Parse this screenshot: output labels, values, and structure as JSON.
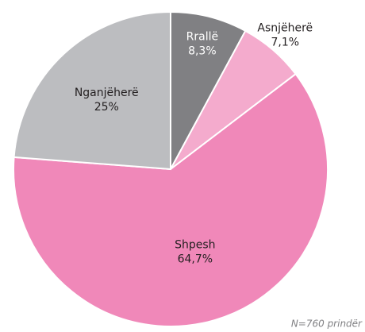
{
  "chart_data": {
    "type": "pie",
    "categories": [
      "Rrallë",
      "Asnjëherë",
      "Shpesh",
      "Nganjëherë"
    ],
    "values": [
      8.3,
      7.1,
      64.7,
      25
    ],
    "value_labels": [
      "8,3%",
      "7,1%",
      "64,7%",
      "25%"
    ],
    "colors": [
      "#808083",
      "#f4abcd",
      "#f088b9",
      "#bcbdc0"
    ],
    "label_colors": [
      "#ffffff",
      "#231f20",
      "#231f20",
      "#231f20"
    ],
    "note": "N=760 prindër"
  }
}
